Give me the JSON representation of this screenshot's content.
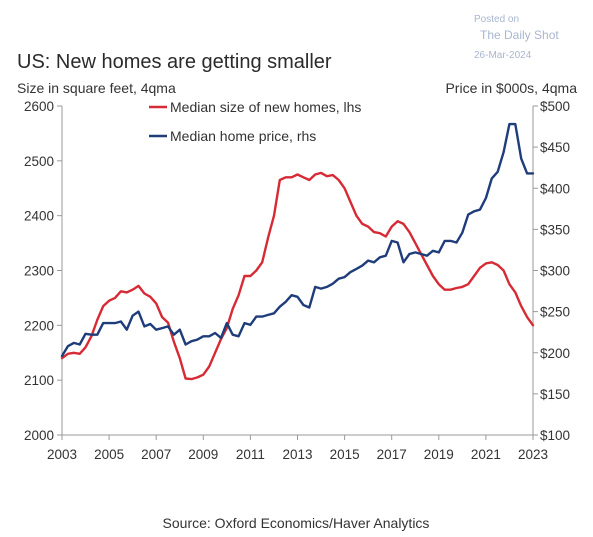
{
  "watermark": {
    "line1": "Posted on",
    "line2": "The Daily Shot",
    "line3": "26-Mar-2024"
  },
  "source": "Source: Oxford Economics/Haver Analytics",
  "colors": {
    "size_series": "#d62b35",
    "price_series": "#1f3d7a",
    "axis": "#9a9a9a"
  },
  "chart_data": {
    "type": "line",
    "title": "US: New homes are getting smaller",
    "left_axis_label": "Size in square feet, 4qma",
    "right_axis_label": "Price in $000s, 4qma",
    "x_ticks": [
      "2003",
      "2005",
      "2007",
      "2009",
      "2011",
      "2013",
      "2015",
      "2017",
      "2019",
      "2021",
      "2023"
    ],
    "xlim": [
      2003,
      2023
    ],
    "left_ticks": [
      "2000",
      "2100",
      "2200",
      "2300",
      "2400",
      "2500",
      "2600"
    ],
    "ylim_left": [
      2000,
      2600
    ],
    "right_ticks": [
      "$100",
      "$150",
      "$200",
      "$250",
      "$300",
      "$350",
      "$400",
      "$450",
      "$500"
    ],
    "ylim_right": [
      100,
      500
    ],
    "legend_position": "top-center",
    "series": [
      {
        "name": "Median size of new homes, lhs",
        "axis": "left",
        "x": [
          2003,
          2003.25,
          2003.5,
          2003.75,
          2004,
          2004.25,
          2004.5,
          2004.75,
          2005,
          2005.25,
          2005.5,
          2005.75,
          2006,
          2006.25,
          2006.5,
          2006.75,
          2007,
          2007.25,
          2007.5,
          2007.75,
          2008,
          2008.25,
          2008.5,
          2008.75,
          2009,
          2009.25,
          2009.5,
          2009.75,
          2010,
          2010.25,
          2010.5,
          2010.75,
          2011,
          2011.25,
          2011.5,
          2011.75,
          2012,
          2012.25,
          2012.5,
          2012.75,
          2013,
          2013.25,
          2013.5,
          2013.75,
          2014,
          2014.25,
          2014.5,
          2014.75,
          2015,
          2015.25,
          2015.5,
          2015.75,
          2016,
          2016.25,
          2016.5,
          2016.75,
          2017,
          2017.25,
          2017.5,
          2017.75,
          2018,
          2018.25,
          2018.5,
          2018.75,
          2019,
          2019.25,
          2019.5,
          2019.75,
          2020,
          2020.25,
          2020.5,
          2020.75,
          2021,
          2021.25,
          2021.5,
          2021.75,
          2022,
          2022.25,
          2022.5,
          2022.75,
          2023
        ],
        "values": [
          2140,
          2148,
          2150,
          2148,
          2160,
          2180,
          2210,
          2235,
          2245,
          2250,
          2262,
          2260,
          2265,
          2272,
          2258,
          2252,
          2240,
          2215,
          2205,
          2170,
          2140,
          2103,
          2102,
          2105,
          2110,
          2125,
          2150,
          2175,
          2195,
          2230,
          2255,
          2290,
          2290,
          2300,
          2315,
          2360,
          2400,
          2465,
          2470,
          2470,
          2475,
          2470,
          2465,
          2475,
          2478,
          2472,
          2474,
          2465,
          2450,
          2425,
          2400,
          2385,
          2380,
          2370,
          2368,
          2362,
          2380,
          2390,
          2385,
          2370,
          2350,
          2330,
          2310,
          2290,
          2275,
          2265,
          2265,
          2268,
          2270,
          2275,
          2290,
          2305,
          2313,
          2315,
          2310,
          2300,
          2275,
          2260,
          2235,
          2215,
          2200
        ]
      },
      {
        "name": "Median home price, rhs",
        "axis": "right",
        "x": [
          2003,
          2003.25,
          2003.5,
          2003.75,
          2004,
          2004.25,
          2004.5,
          2004.75,
          2005,
          2005.25,
          2005.5,
          2005.75,
          2006,
          2006.25,
          2006.5,
          2006.75,
          2007,
          2007.25,
          2007.5,
          2007.75,
          2008,
          2008.25,
          2008.5,
          2008.75,
          2009,
          2009.25,
          2009.5,
          2009.75,
          2010,
          2010.25,
          2010.5,
          2010.75,
          2011,
          2011.25,
          2011.5,
          2011.75,
          2012,
          2012.25,
          2012.5,
          2012.75,
          2013,
          2013.25,
          2013.5,
          2013.75,
          2014,
          2014.25,
          2014.5,
          2014.75,
          2015,
          2015.25,
          2015.5,
          2015.75,
          2016,
          2016.25,
          2016.5,
          2016.75,
          2017,
          2017.25,
          2017.5,
          2017.75,
          2018,
          2018.25,
          2018.5,
          2018.75,
          2019,
          2019.25,
          2019.5,
          2019.75,
          2020,
          2020.25,
          2020.5,
          2020.75,
          2021,
          2021.25,
          2021.5,
          2021.75,
          2022,
          2022.25,
          2022.5,
          2022.75,
          2023
        ],
        "values": [
          196,
          208,
          212,
          210,
          223,
          222,
          222,
          236,
          236,
          236,
          238,
          228,
          245,
          250,
          232,
          235,
          228,
          230,
          232,
          222,
          228,
          210,
          214,
          216,
          220,
          220,
          224,
          218,
          236,
          222,
          220,
          236,
          234,
          244,
          244,
          246,
          248,
          256,
          262,
          270,
          268,
          258,
          255,
          280,
          278,
          280,
          284,
          290,
          292,
          298,
          302,
          306,
          312,
          310,
          316,
          318,
          336,
          334,
          310,
          320,
          322,
          320,
          318,
          324,
          322,
          336,
          336,
          334,
          346,
          368,
          372,
          374,
          388,
          412,
          420,
          444,
          478,
          478,
          436,
          418,
          418
        ]
      }
    ]
  }
}
